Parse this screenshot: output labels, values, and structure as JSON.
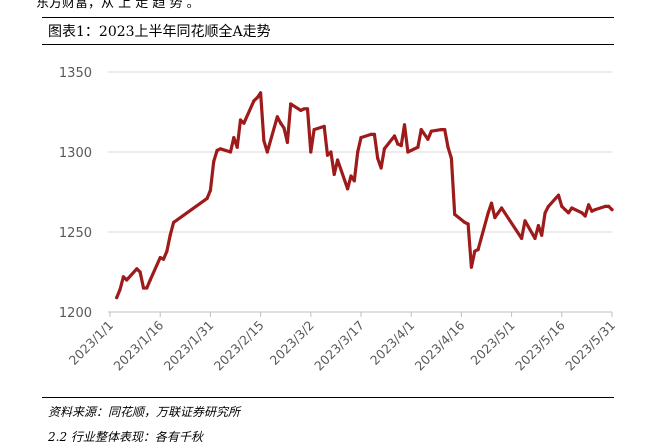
{
  "page": {
    "top_fragment": "东方财富，从 上 走 趋 势 。",
    "figure_title": "图表1：2023上半年同花顺全A走势",
    "source": "资料来源：同花顺，万联证券研究所",
    "bottom_fragment": "2.2 行业整体表现：各有千秋"
  },
  "chart_data": {
    "type": "line",
    "title": "",
    "xlabel": "",
    "ylabel": "",
    "ylim": [
      1200,
      1350
    ],
    "yticks": [
      1200,
      1250,
      1300,
      1350
    ],
    "xticks": [
      "2023/1/1",
      "2023/1/16",
      "2023/1/31",
      "2023/2/15",
      "2023/3/2",
      "2023/3/17",
      "2023/4/1",
      "2023/4/16",
      "2023/5/1",
      "2023/5/16",
      "2023/5/31"
    ],
    "xlim": [
      "2023/1/1",
      "2023/5/31"
    ],
    "grid": "horizontal",
    "legend": "none",
    "color": "#9e1b1b",
    "x": [
      "2023/1/3",
      "2023/1/4",
      "2023/1/5",
      "2023/1/6",
      "2023/1/9",
      "2023/1/10",
      "2023/1/11",
      "2023/1/12",
      "2023/1/13",
      "2023/1/16",
      "2023/1/17",
      "2023/1/18",
      "2023/1/19",
      "2023/1/20",
      "2023/1/30",
      "2023/1/31",
      "2023/2/1",
      "2023/2/2",
      "2023/2/3",
      "2023/2/6",
      "2023/2/7",
      "2023/2/8",
      "2023/2/9",
      "2023/2/10",
      "2023/2/13",
      "2023/2/14",
      "2023/2/15",
      "2023/2/16",
      "2023/2/17",
      "2023/2/20",
      "2023/2/21",
      "2023/2/22",
      "2023/2/23",
      "2023/2/24",
      "2023/2/27",
      "2023/2/28",
      "2023/3/1",
      "2023/3/2",
      "2023/3/3",
      "2023/3/6",
      "2023/3/7",
      "2023/3/8",
      "2023/3/9",
      "2023/3/10",
      "2023/3/13",
      "2023/3/14",
      "2023/3/15",
      "2023/3/16",
      "2023/3/17",
      "2023/3/20",
      "2023/3/21",
      "2023/3/22",
      "2023/3/23",
      "2023/3/24",
      "2023/3/27",
      "2023/3/28",
      "2023/3/29",
      "2023/3/30",
      "2023/3/31",
      "2023/4/3",
      "2023/4/4",
      "2023/4/6",
      "2023/4/7",
      "2023/4/10",
      "2023/4/11",
      "2023/4/12",
      "2023/4/13",
      "2023/4/14",
      "2023/4/17",
      "2023/4/18",
      "2023/4/19",
      "2023/4/20",
      "2023/4/21",
      "2023/4/24",
      "2023/4/25",
      "2023/4/26",
      "2023/4/27",
      "2023/4/28",
      "2023/5/4",
      "2023/5/5",
      "2023/5/8",
      "2023/5/9",
      "2023/5/10",
      "2023/5/11",
      "2023/5/12",
      "2023/5/15",
      "2023/5/16",
      "2023/5/17",
      "2023/5/18",
      "2023/5/19",
      "2023/5/22",
      "2023/5/23",
      "2023/5/24",
      "2023/5/25",
      "2023/5/26",
      "2023/5/29",
      "2023/5/30",
      "2023/5/31"
    ],
    "values": [
      1209,
      1214,
      1222,
      1220,
      1227,
      1225,
      1215,
      1215,
      1220,
      1234,
      1233,
      1238,
      1248,
      1256,
      1271,
      1276,
      1294,
      1301,
      1302,
      1300,
      1309,
      1303,
      1320,
      1318,
      1332,
      1334,
      1337,
      1307,
      1300,
      1322,
      1318,
      1315,
      1306,
      1330,
      1326,
      1327,
      1327,
      1300,
      1314,
      1316,
      1298,
      1300,
      1286,
      1295,
      1277,
      1285,
      1282,
      1300,
      1309,
      1311,
      1311,
      1296,
      1290,
      1302,
      1310,
      1305,
      1304,
      1317,
      1300,
      1303,
      1314,
      1308,
      1313,
      1314,
      1314,
      1303,
      1296,
      1261,
      1256,
      1255,
      1228,
      1238,
      1239,
      1262,
      1268,
      1259,
      1262,
      1265,
      1246,
      1257,
      1246,
      1254,
      1248,
      1262,
      1266,
      1273,
      1266,
      1264,
      1262,
      1265,
      1262,
      1260,
      1267,
      1263,
      1264,
      1266,
      1266,
      1264
    ]
  }
}
